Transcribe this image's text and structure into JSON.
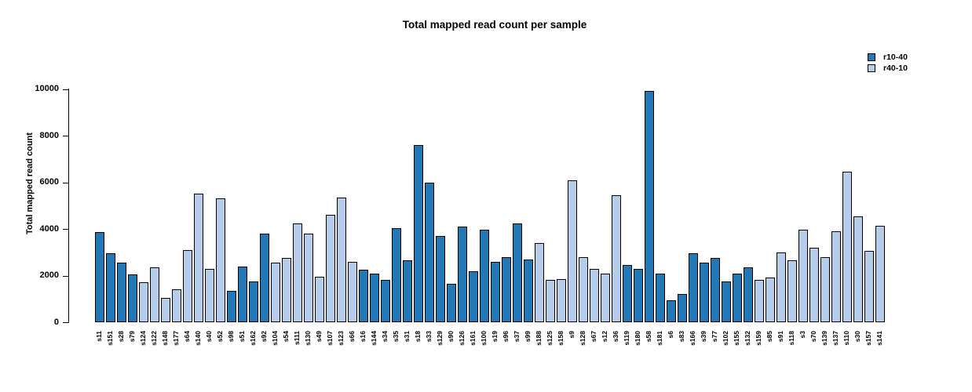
{
  "chart_data": {
    "type": "bar",
    "title": "Total mapped read count per sample",
    "xlabel": "",
    "ylabel": "Total mapped read count",
    "ylim": [
      0,
      10000
    ],
    "yticks": [
      0,
      2000,
      4000,
      6000,
      8000,
      10000
    ],
    "grid": false,
    "legend_position": "top-right",
    "series": [
      {
        "name": "r10-40",
        "color": "#2377B4"
      },
      {
        "name": "r40-10",
        "color": "#B7CCE9"
      }
    ],
    "categories": [
      "s11",
      "s151",
      "s28",
      "s79",
      "s124",
      "s122",
      "s148",
      "s177",
      "s64",
      "s140",
      "s40",
      "s52",
      "s98",
      "s51",
      "s162",
      "s92",
      "s104",
      "s54",
      "s111",
      "s130",
      "s49",
      "s107",
      "s123",
      "s66",
      "s16",
      "s144",
      "s34",
      "s35",
      "s31",
      "s18",
      "s33",
      "s129",
      "s90",
      "s126",
      "s161",
      "s100",
      "s19",
      "s96",
      "s37",
      "s99",
      "s188",
      "s125",
      "s158",
      "s9",
      "s128",
      "s67",
      "s12",
      "s36",
      "s119",
      "s180",
      "s58",
      "s181",
      "s6",
      "s83",
      "s166",
      "s39",
      "s77",
      "s102",
      "s155",
      "s132",
      "s159",
      "s85",
      "s91",
      "s118",
      "s3",
      "s70",
      "s139",
      "s137",
      "s110",
      "s30",
      "s157",
      "s141"
    ],
    "values": [
      3850,
      2950,
      2550,
      2050,
      1700,
      2350,
      1050,
      1400,
      3100,
      5500,
      2300,
      5300,
      1350,
      2400,
      1750,
      3800,
      2550,
      2750,
      4250,
      3800,
      1950,
      4600,
      5350,
      2600,
      2250,
      2100,
      1800,
      4050,
      2650,
      7600,
      6000,
      3700,
      1650,
      4100,
      2200,
      3950,
      2600,
      2800,
      4250,
      2700,
      3400,
      1800,
      1850,
      6100,
      2800,
      2300,
      2100,
      5450,
      2450,
      2300,
      9900,
      2100,
      950,
      1200,
      2950,
      2550,
      2750,
      1750,
      2100,
      2350,
      1800,
      1900,
      3000,
      2650,
      3950,
      3200,
      2800,
      3900,
      6450,
      4550,
      3050,
      4150
    ],
    "groups": [
      "r10-40",
      "r10-40",
      "r10-40",
      "r10-40",
      "r40-10",
      "r40-10",
      "r40-10",
      "r40-10",
      "r40-10",
      "r40-10",
      "r40-10",
      "r40-10",
      "r10-40",
      "r10-40",
      "r10-40",
      "r10-40",
      "r40-10",
      "r40-10",
      "r40-10",
      "r40-10",
      "r40-10",
      "r40-10",
      "r40-10",
      "r40-10",
      "r10-40",
      "r10-40",
      "r10-40",
      "r10-40",
      "r10-40",
      "r10-40",
      "r10-40",
      "r10-40",
      "r10-40",
      "r10-40",
      "r10-40",
      "r10-40",
      "r10-40",
      "r10-40",
      "r10-40",
      "r10-40",
      "r40-10",
      "r40-10",
      "r40-10",
      "r40-10",
      "r40-10",
      "r40-10",
      "r40-10",
      "r40-10",
      "r10-40",
      "r10-40",
      "r10-40",
      "r10-40",
      "r10-40",
      "r10-40",
      "r10-40",
      "r10-40",
      "r10-40",
      "r10-40",
      "r10-40",
      "r10-40",
      "r40-10",
      "r40-10",
      "r40-10",
      "r40-10",
      "r40-10",
      "r40-10",
      "r40-10",
      "r40-10",
      "r40-10",
      "r40-10",
      "r40-10",
      "r40-10"
    ]
  }
}
